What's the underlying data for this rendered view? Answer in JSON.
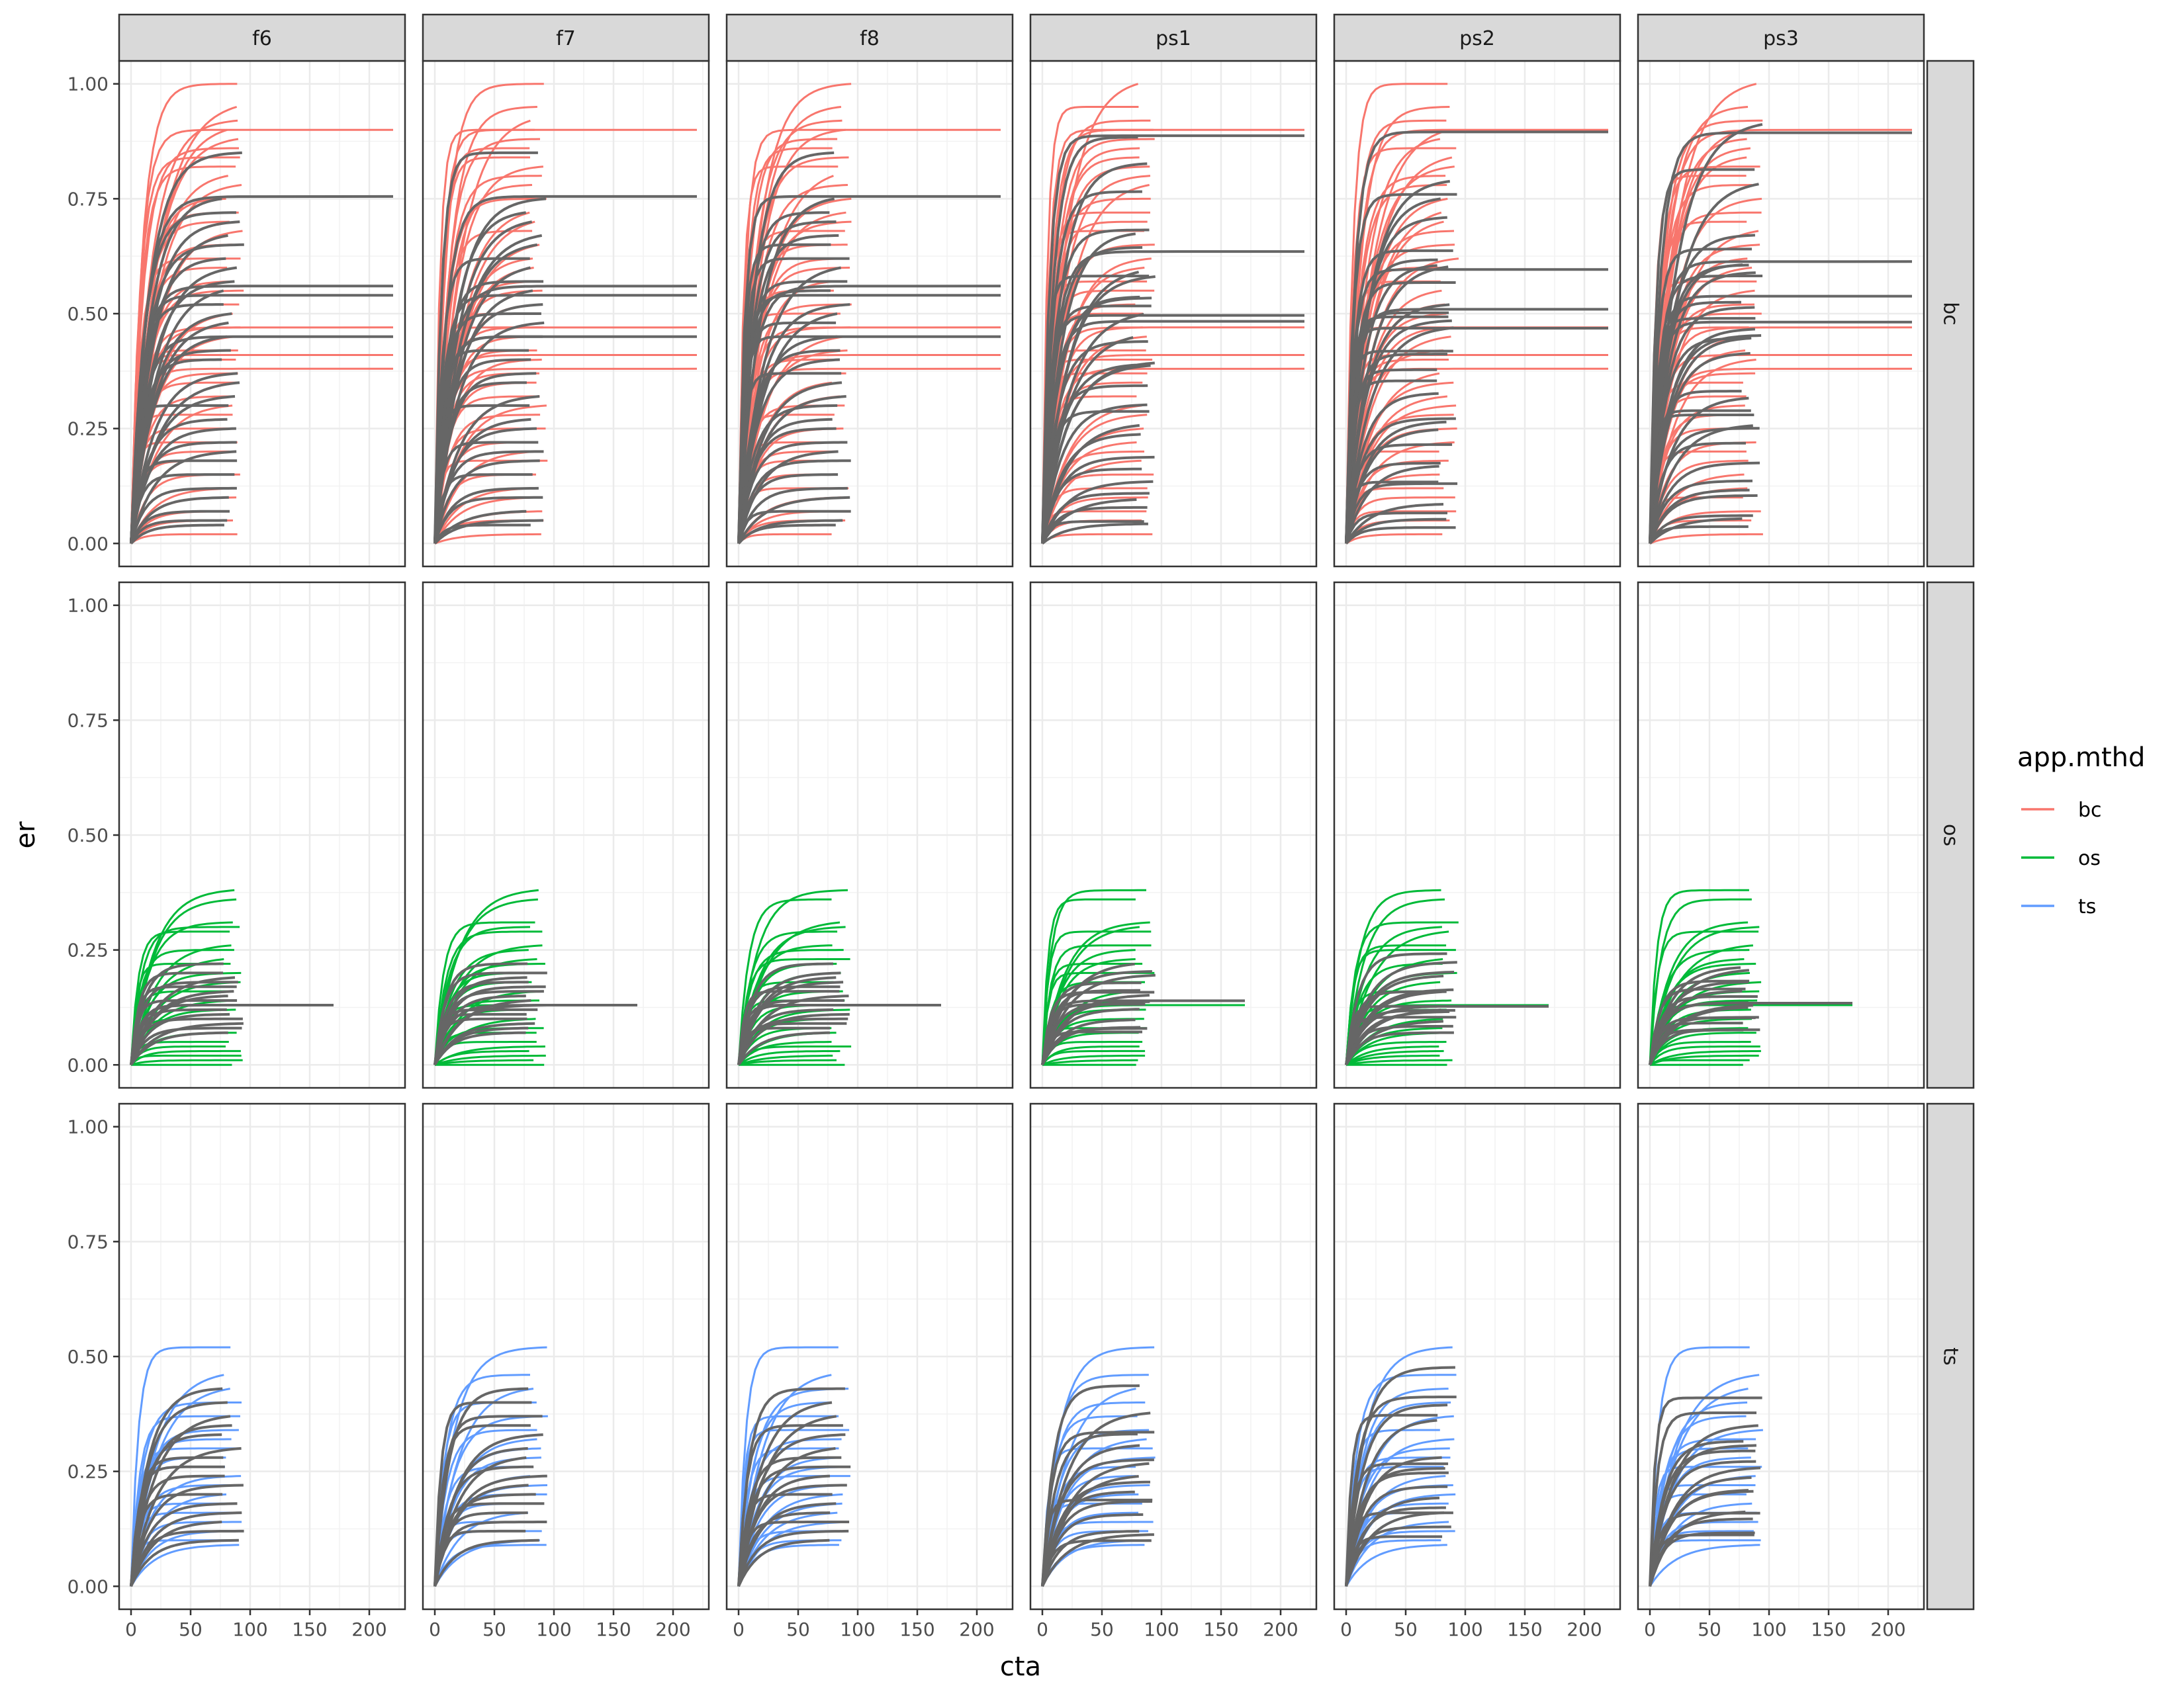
{
  "chart_data": {
    "type": "line",
    "facet_columns": [
      "f6",
      "f7",
      "f8",
      "ps1",
      "ps2",
      "ps3"
    ],
    "facet_rows": [
      "bc",
      "os",
      "ts"
    ],
    "xlabel": "cta",
    "ylabel": "er",
    "x_ticks": [
      0,
      50,
      100,
      150,
      200
    ],
    "y_ticks": [
      "0.00",
      "0.25",
      "0.50",
      "0.75",
      "1.00"
    ],
    "xlim": [
      -10,
      230
    ],
    "ylim": [
      -0.05,
      1.05
    ],
    "grid": true,
    "legend": {
      "title": "app.mthd",
      "position": "right",
      "entries": [
        {
          "label": "bc",
          "color": "#F8766D"
        },
        {
          "label": "os",
          "color": "#00BA38"
        },
        {
          "label": "ts",
          "color": "#619CFF"
        }
      ]
    },
    "overlay_series_color": "#666666",
    "row_groups": {
      "bc": {
        "color": "#F8766D",
        "typical_x_max": 95,
        "final_values": [
          1.0,
          0.95,
          0.92,
          0.9,
          0.88,
          0.86,
          0.84,
          0.82,
          0.8,
          0.78,
          0.75,
          0.72,
          0.7,
          0.68,
          0.65,
          0.62,
          0.6,
          0.57,
          0.55,
          0.52,
          0.5,
          0.47,
          0.45,
          0.42,
          0.4,
          0.37,
          0.35,
          0.32,
          0.3,
          0.28,
          0.25,
          0.22,
          0.2,
          0.18,
          0.15,
          0.12,
          0.1,
          0.07,
          0.05,
          0.02
        ],
        "extended_lines": [
          {
            "x_end": 220,
            "y_end": 0.9
          },
          {
            "x_end": 220,
            "y_end": 0.47
          },
          {
            "x_end": 220,
            "y_end": 0.41
          },
          {
            "x_end": 220,
            "y_end": 0.38
          }
        ],
        "overlay_final_values": [
          0.85,
          0.75,
          0.72,
          0.7,
          0.67,
          0.65,
          0.62,
          0.6,
          0.57,
          0.55,
          0.52,
          0.5,
          0.48,
          0.45,
          0.42,
          0.4,
          0.37,
          0.35,
          0.32,
          0.3,
          0.27,
          0.25,
          0.22,
          0.2,
          0.18,
          0.15,
          0.12,
          0.1,
          0.07,
          0.05,
          0.04
        ],
        "overlay_extended_lines": [
          {
            "x_end": 220,
            "y_end": 0.755
          },
          {
            "x_end": 220,
            "y_end": 0.56
          },
          {
            "x_end": 220,
            "y_end": 0.54
          },
          {
            "x_end": 220,
            "y_end": 0.45
          }
        ]
      },
      "os": {
        "color": "#00BA38",
        "typical_x_max": 95,
        "final_values": [
          0.38,
          0.36,
          0.31,
          0.3,
          0.29,
          0.26,
          0.25,
          0.23,
          0.22,
          0.2,
          0.18,
          0.16,
          0.14,
          0.12,
          0.1,
          0.08,
          0.07,
          0.05,
          0.04,
          0.03,
          0.02,
          0.01,
          0.0
        ],
        "extended_lines": [
          {
            "x_end": 170,
            "y_end": 0.13
          }
        ],
        "overlay_final_values": [
          0.22,
          0.2,
          0.19,
          0.18,
          0.17,
          0.16,
          0.15,
          0.14,
          0.13,
          0.12,
          0.11,
          0.1,
          0.09,
          0.08,
          0.07
        ],
        "overlay_extended_lines": [
          {
            "x_end": 170,
            "y_end": 0.13
          }
        ]
      },
      "ts": {
        "color": "#619CFF",
        "typical_x_max": 95,
        "final_values": [
          0.52,
          0.46,
          0.43,
          0.4,
          0.37,
          0.34,
          0.32,
          0.3,
          0.28,
          0.26,
          0.24,
          0.22,
          0.2,
          0.18,
          0.16,
          0.14,
          0.12,
          0.1,
          0.09
        ],
        "extended_lines": [],
        "overlay_final_values": [
          0.43,
          0.4,
          0.37,
          0.35,
          0.33,
          0.3,
          0.28,
          0.26,
          0.24,
          0.22,
          0.2,
          0.18,
          0.16,
          0.14,
          0.12,
          0.1
        ],
        "overlay_extended_lines": []
      }
    }
  }
}
